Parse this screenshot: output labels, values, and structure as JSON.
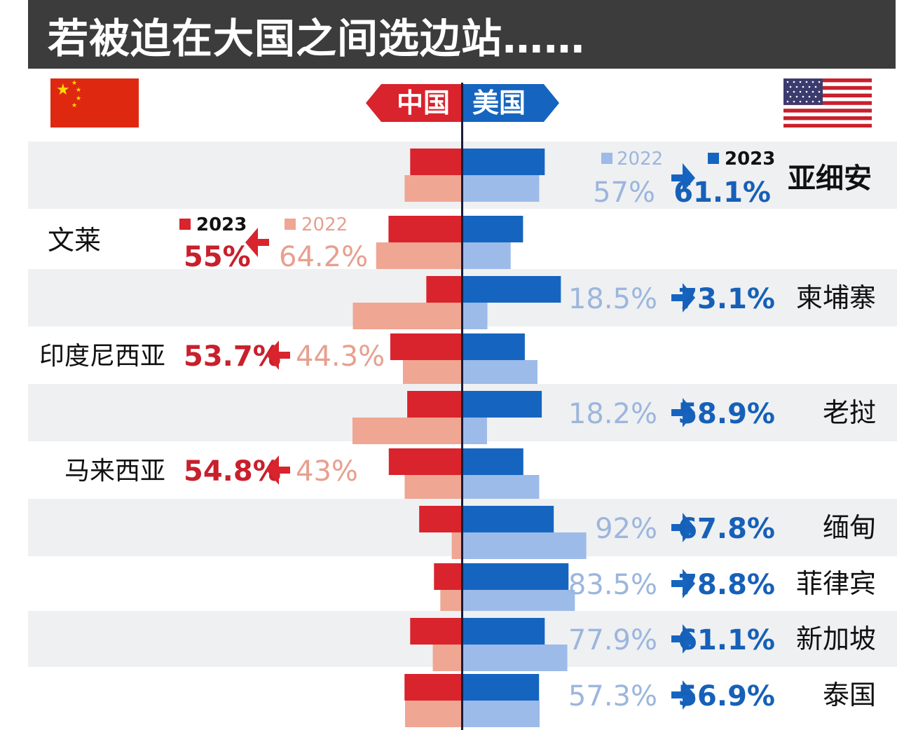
{
  "title": "若被迫在大国之间选边站……",
  "badges": {
    "china": "中国",
    "usa": "美国"
  },
  "colors": {
    "china_2023": "#d9232d",
    "china_2022": "#efa692",
    "usa_2023": "#1565c0",
    "usa_2022": "#9cbbe8",
    "red_text": "#c8202c",
    "pink_text": "#e7a08f",
    "blue_text": "#1660b8",
    "lightblue_text": "#9cb6dd",
    "row_band": "#eff0f2"
  },
  "icons": {
    "china_flag": "china-flag-icon",
    "usa_flag": "usa-flag-icon",
    "arrow": "arrow-icon"
  },
  "chart_data": {
    "type": "bar",
    "legends": {
      "usa_side": [
        {
          "label": "2022"
        },
        {
          "label": "2023"
        }
      ],
      "china_side": [
        {
          "label": "2023"
        },
        {
          "label": "2022"
        }
      ]
    },
    "rows": [
      {
        "country": "亚细安",
        "leaning": "usa",
        "values": {
          "cn_2023": 38.9,
          "cn_2022": 43,
          "us_2023": 61.1,
          "us_2022": 57
        },
        "label_from": "57%",
        "label_to": "61.1%"
      },
      {
        "country": "文莱",
        "leaning": "china",
        "values": {
          "cn_2023": 55,
          "cn_2022": 64.2,
          "us_2023": 45,
          "us_2022": 35.8
        },
        "label_from": "64.2%",
        "label_to": "55%"
      },
      {
        "country": "柬埔寨",
        "leaning": "usa",
        "values": {
          "cn_2023": 26.9,
          "cn_2022": 81.5,
          "us_2023": 73.1,
          "us_2022": 18.5
        },
        "label_from": "18.5%",
        "label_to": "73.1%"
      },
      {
        "country": "印度尼西亚",
        "leaning": "china",
        "values": {
          "cn_2023": 53.7,
          "cn_2022": 44.3,
          "us_2023": 46.3,
          "us_2022": 55.7
        },
        "label_from": "44.3%",
        "label_to": "53.7%"
      },
      {
        "country": "老挝",
        "leaning": "usa",
        "values": {
          "cn_2023": 41.1,
          "cn_2022": 81.8,
          "us_2023": 58.9,
          "us_2022": 18.2
        },
        "label_from": "18.2%",
        "label_to": "58.9%"
      },
      {
        "country": "马来西亚",
        "leaning": "china",
        "values": {
          "cn_2023": 54.8,
          "cn_2022": 43,
          "us_2023": 45.2,
          "us_2022": 57
        },
        "label_from": "43%",
        "label_to": "54.8%"
      },
      {
        "country": "缅甸",
        "leaning": "usa",
        "values": {
          "cn_2023": 32.2,
          "cn_2022": 8,
          "us_2023": 67.8,
          "us_2022": 92
        },
        "label_from": "92%",
        "label_to": "67.8%"
      },
      {
        "country": "菲律宾",
        "leaning": "usa",
        "values": {
          "cn_2023": 21.2,
          "cn_2022": 16.5,
          "us_2023": 78.8,
          "us_2022": 83.5
        },
        "label_from": "83.5%",
        "label_to": "78.8%"
      },
      {
        "country": "新加坡",
        "leaning": "usa",
        "values": {
          "cn_2023": 38.9,
          "cn_2022": 22.1,
          "us_2023": 61.1,
          "us_2022": 77.9
        },
        "label_from": "77.9%",
        "label_to": "61.1%"
      },
      {
        "country": "泰国",
        "leaning": "usa",
        "values": {
          "cn_2023": 43.1,
          "cn_2022": 42.7,
          "us_2023": 56.9,
          "us_2022": 57.3
        },
        "label_from": "57.3%",
        "label_to": "56.9%"
      }
    ]
  }
}
